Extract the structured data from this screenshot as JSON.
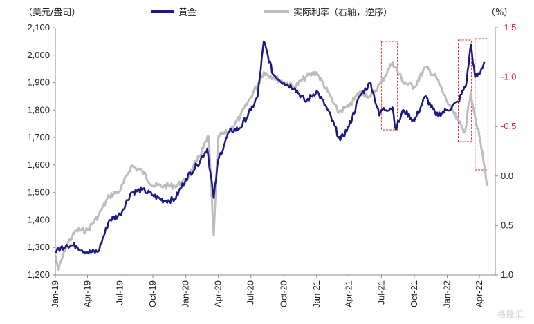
{
  "colors": {
    "gold": "#1a1a80",
    "real_rate": "#bdbdbd",
    "right_axis": "#e0242b",
    "highlight": "#e0242b",
    "axis": "#888888"
  },
  "chart_data": {
    "type": "line",
    "left_unit": "（美元/盎司）",
    "right_unit": "（%）",
    "legend_position": "top",
    "y_left": {
      "min": 1200,
      "max": 2100,
      "ticks": [
        "2,100",
        "2,000",
        "1,900",
        "1,800",
        "1,700",
        "1,600",
        "1,500",
        "1,400",
        "1,300",
        "1,200"
      ]
    },
    "y_right": {
      "min": -1.5,
      "max": 1.0,
      "inverted": true,
      "ticks": [
        "-1.5",
        "-1.0",
        "-0.5",
        "0.0",
        "0.5",
        "1.0"
      ]
    },
    "x_labels": [
      "Jan-19",
      "Apr-19",
      "Jul-19",
      "Oct-19",
      "Jan-20",
      "Apr-20",
      "Jul-20",
      "Oct-20",
      "Jan-21",
      "Apr-21",
      "Jul-21",
      "Oct-21",
      "Jan-22",
      "Apr-22"
    ],
    "series": [
      {
        "name": "黄金",
        "axis": "left",
        "points": [
          [
            "2019-01-01",
            1285
          ],
          [
            "2019-02-01",
            1310
          ],
          [
            "2019-03-01",
            1305
          ],
          [
            "2019-04-01",
            1282
          ],
          [
            "2019-05-01",
            1285
          ],
          [
            "2019-06-01",
            1400
          ],
          [
            "2019-07-01",
            1420
          ],
          [
            "2019-08-01",
            1500
          ],
          [
            "2019-09-01",
            1510
          ],
          [
            "2019-10-01",
            1490
          ],
          [
            "2019-11-01",
            1470
          ],
          [
            "2019-12-01",
            1475
          ],
          [
            "2020-01-01",
            1550
          ],
          [
            "2020-02-01",
            1600
          ],
          [
            "2020-03-01",
            1660
          ],
          [
            "2020-03-19",
            1480
          ],
          [
            "2020-04-01",
            1620
          ],
          [
            "2020-05-01",
            1720
          ],
          [
            "2020-06-01",
            1735
          ],
          [
            "2020-07-01",
            1800
          ],
          [
            "2020-07-20",
            1850
          ],
          [
            "2020-08-06",
            2050
          ],
          [
            "2020-09-01",
            1930
          ],
          [
            "2020-10-01",
            1900
          ],
          [
            "2020-11-01",
            1880
          ],
          [
            "2020-12-01",
            1830
          ],
          [
            "2021-01-01",
            1870
          ],
          [
            "2021-02-01",
            1800
          ],
          [
            "2021-03-08",
            1690
          ],
          [
            "2021-04-01",
            1740
          ],
          [
            "2021-05-01",
            1850
          ],
          [
            "2021-06-01",
            1900
          ],
          [
            "2021-06-25",
            1780
          ],
          [
            "2021-07-01",
            1800
          ],
          [
            "2021-08-01",
            1810
          ],
          [
            "2021-08-10",
            1730
          ],
          [
            "2021-09-01",
            1800
          ],
          [
            "2021-10-01",
            1760
          ],
          [
            "2021-11-01",
            1850
          ],
          [
            "2021-12-01",
            1780
          ],
          [
            "2022-01-01",
            1800
          ],
          [
            "2022-02-01",
            1830
          ],
          [
            "2022-02-24",
            1900
          ],
          [
            "2022-03-08",
            2040
          ],
          [
            "2022-03-20",
            1920
          ],
          [
            "2022-04-01",
            1930
          ],
          [
            "2022-04-15",
            1975
          ]
        ]
      },
      {
        "name": "实际利率（右轴，逆序）",
        "axis": "right",
        "points": [
          [
            "2019-01-01",
            0.8
          ],
          [
            "2019-01-10",
            0.95
          ],
          [
            "2019-02-01",
            0.7
          ],
          [
            "2019-03-01",
            0.55
          ],
          [
            "2019-04-01",
            0.55
          ],
          [
            "2019-05-01",
            0.4
          ],
          [
            "2019-06-01",
            0.2
          ],
          [
            "2019-07-01",
            0.15
          ],
          [
            "2019-08-01",
            -0.1
          ],
          [
            "2019-09-01",
            -0.05
          ],
          [
            "2019-10-01",
            0.1
          ],
          [
            "2019-11-01",
            0.1
          ],
          [
            "2019-12-01",
            0.1
          ],
          [
            "2020-01-01",
            0.05
          ],
          [
            "2020-02-01",
            -0.15
          ],
          [
            "2020-03-05",
            -0.4
          ],
          [
            "2020-03-19",
            0.6
          ],
          [
            "2020-04-01",
            -0.4
          ],
          [
            "2020-05-01",
            -0.45
          ],
          [
            "2020-06-01",
            -0.6
          ],
          [
            "2020-07-01",
            -0.8
          ],
          [
            "2020-08-06",
            -1.05
          ],
          [
            "2020-09-01",
            -1.0
          ],
          [
            "2020-10-01",
            -0.95
          ],
          [
            "2020-11-01",
            -0.9
          ],
          [
            "2020-12-01",
            -1.0
          ],
          [
            "2021-01-01",
            -1.05
          ],
          [
            "2021-02-01",
            -0.85
          ],
          [
            "2021-03-01",
            -0.65
          ],
          [
            "2021-04-01",
            -0.7
          ],
          [
            "2021-05-01",
            -0.85
          ],
          [
            "2021-06-01",
            -0.8
          ],
          [
            "2021-07-01",
            -0.95
          ],
          [
            "2021-08-01",
            -1.15
          ],
          [
            "2021-09-01",
            -0.95
          ],
          [
            "2021-10-01",
            -0.9
          ],
          [
            "2021-11-01",
            -1.1
          ],
          [
            "2021-12-01",
            -1.0
          ],
          [
            "2022-01-01",
            -0.75
          ],
          [
            "2022-02-01",
            -0.55
          ],
          [
            "2022-02-20",
            -0.45
          ],
          [
            "2022-03-08",
            -0.85
          ],
          [
            "2022-03-20",
            -0.6
          ],
          [
            "2022-04-01",
            -0.4
          ],
          [
            "2022-04-15",
            -0.1
          ],
          [
            "2022-04-22",
            0.1
          ]
        ]
      }
    ],
    "highlight_ranges": [
      {
        "from": "2021-07-01",
        "to": "2021-08-15"
      },
      {
        "from": "2022-02-01",
        "to": "2022-03-10"
      },
      {
        "from": "2022-03-20",
        "to": "2022-04-25"
      }
    ]
  },
  "watermark": "格隆汇"
}
